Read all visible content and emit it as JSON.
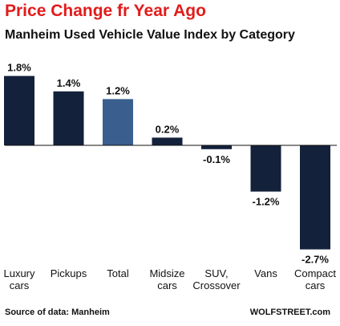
{
  "colors": {
    "title": "#e31b1b",
    "bar": "#13213b",
    "highlight": "#3a5f8f",
    "axis": "#111111"
  },
  "footer": {
    "source": "Source of data: Manheim",
    "brand": "WOLFSTREET.com"
  },
  "chart_data": {
    "type": "bar",
    "title": "Price Change fr Year Ago",
    "subtitle": "Manheim Used Vehicle Value Index by Category",
    "categories": [
      [
        "Luxury",
        "cars"
      ],
      [
        "Pickups"
      ],
      [
        "Total"
      ],
      [
        "Midsize",
        "cars"
      ],
      [
        "SUV,",
        "Crossover"
      ],
      [
        "Vans"
      ],
      [
        "Compact",
        "cars"
      ]
    ],
    "values": [
      1.8,
      1.4,
      1.2,
      0.2,
      -0.1,
      -1.2,
      -2.7
    ],
    "value_labels": [
      "1.8%",
      "1.4%",
      "1.2%",
      "0.2%",
      "-0.1%",
      "-1.2%",
      "-2.7%"
    ],
    "highlight_category": "Total",
    "xlabel": "",
    "ylabel": "",
    "grid": false,
    "legend": "none"
  }
}
